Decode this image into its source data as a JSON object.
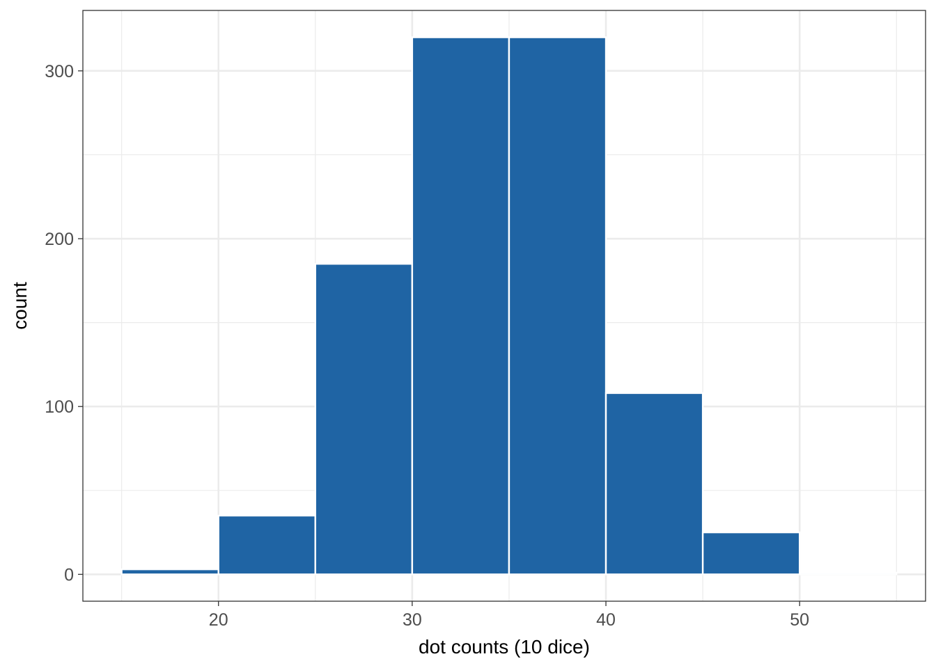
{
  "chart_data": {
    "type": "bar",
    "subtype": "histogram",
    "bins": [
      {
        "x0": 15,
        "x1": 20,
        "count": 3
      },
      {
        "x0": 20,
        "x1": 25,
        "count": 35
      },
      {
        "x0": 25,
        "x1": 30,
        "count": 185
      },
      {
        "x0": 30,
        "x1": 35,
        "count": 320
      },
      {
        "x0": 35,
        "x1": 40,
        "count": 320
      },
      {
        "x0": 40,
        "x1": 45,
        "count": 108
      },
      {
        "x0": 45,
        "x1": 50,
        "count": 25
      },
      {
        "x0": 50,
        "x1": 55,
        "count": 1
      }
    ],
    "title": "",
    "xlabel": "dot counts (10 dice)",
    "ylabel": "count",
    "xlim": [
      13.0,
      56.5
    ],
    "ylim": [
      -16,
      336
    ],
    "x_major_ticks": [
      20,
      30,
      40,
      50
    ],
    "x_minor_ticks": [
      15,
      25,
      35,
      45,
      55
    ],
    "y_major_ticks": [
      0,
      100,
      200,
      300
    ],
    "y_minor_ticks": [
      50,
      150,
      250
    ],
    "bar_color": "#1f64a4",
    "bar_outline": "#ffffff",
    "grid": true,
    "grid_color": "#ebebeb",
    "panel_border_color": "#333333"
  }
}
